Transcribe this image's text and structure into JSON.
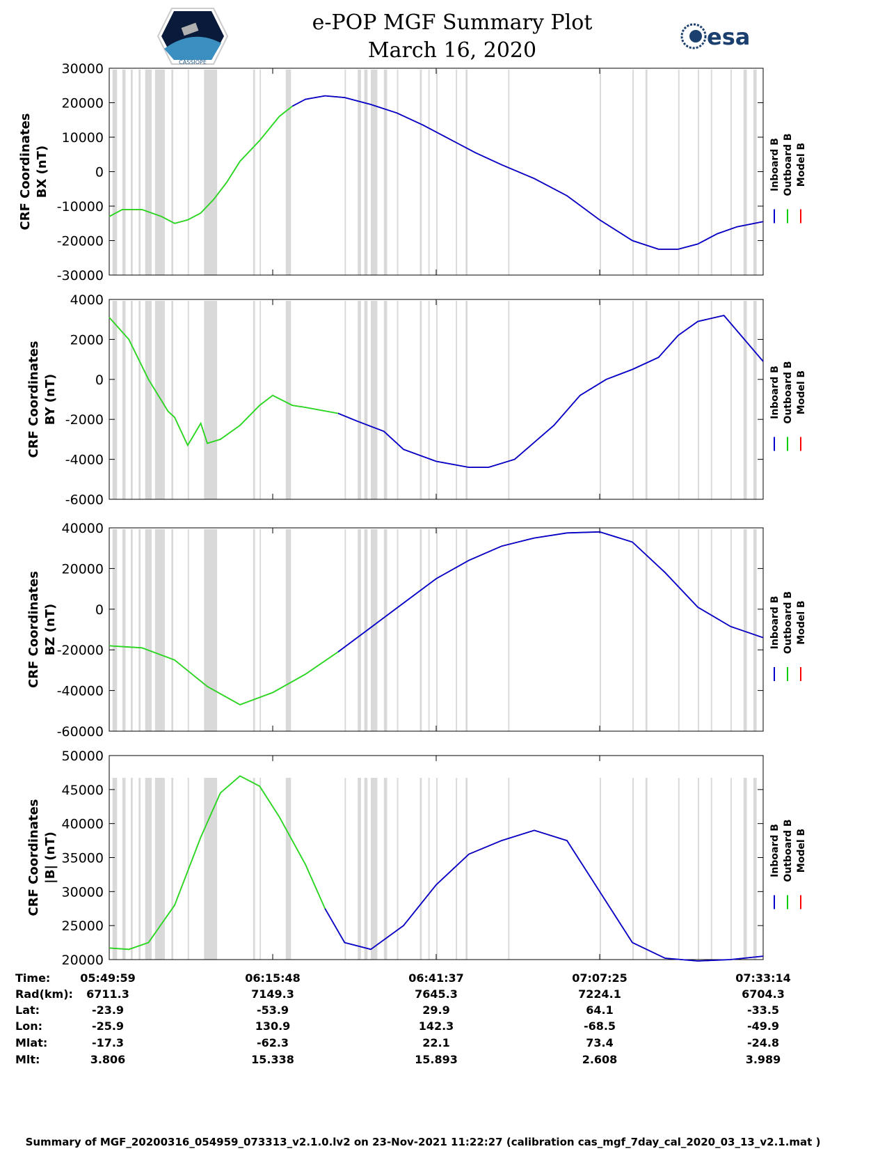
{
  "header": {
    "title": "e-POP MGF Summary Plot",
    "date": "March 16, 2020",
    "left_logo": "CASSIOPE",
    "right_logo": "esa"
  },
  "legend": {
    "items": [
      {
        "label": "Inboard B",
        "color": "#0000cc"
      },
      {
        "label": "Outboard B",
        "color": "#00cc00"
      },
      {
        "label": "Model B",
        "color": "#ff0000"
      }
    ]
  },
  "colors": {
    "inboard": "#0000cc",
    "outboard": "#22dd22",
    "model": "#ff0000",
    "gap": "#d9d9d9"
  },
  "chart_data": [
    {
      "type": "line",
      "ylabel_line1": "CRF Coordinates",
      "ylabel_line2": "BX (nT)",
      "ylim": [
        -30000,
        30000
      ],
      "yticks": [
        30000,
        20000,
        10000,
        0,
        -10000,
        -20000,
        -30000
      ],
      "ytick_labels": [
        "30000",
        "20000",
        "10000",
        "0",
        "-10000",
        "-20000",
        "-30000"
      ],
      "switch_frac": 0.28,
      "x": [
        0,
        0.02,
        0.05,
        0.08,
        0.1,
        0.12,
        0.14,
        0.16,
        0.18,
        0.2,
        0.23,
        0.26,
        0.28,
        0.3,
        0.33,
        0.36,
        0.4,
        0.44,
        0.48,
        0.52,
        0.56,
        0.6,
        0.65,
        0.7,
        0.75,
        0.8,
        0.84,
        0.87,
        0.9,
        0.93,
        0.96,
        1.0
      ],
      "values": [
        -13000,
        -11000,
        -11000,
        -13000,
        -15000,
        -14000,
        -12000,
        -8000,
        -3000,
        3000,
        9000,
        16000,
        19000,
        21000,
        22000,
        21500,
        19500,
        17000,
        13500,
        9500,
        5500,
        2000,
        -2000,
        -7000,
        -14000,
        -20000,
        -22500,
        -22500,
        -21000,
        -18000,
        -16000,
        -14500
      ]
    },
    {
      "type": "line",
      "ylabel_line1": "CRF Coordinates",
      "ylabel_line2": "BY (nT)",
      "ylim": [
        -6000,
        4000
      ],
      "yticks": [
        4000,
        2000,
        0,
        -2000,
        -4000,
        -6000
      ],
      "ytick_labels": [
        "4000",
        "2000",
        "0",
        "-2000",
        "-4000",
        "-6000"
      ],
      "switch_frac": 0.35,
      "x": [
        0,
        0.03,
        0.06,
        0.09,
        0.1,
        0.12,
        0.14,
        0.15,
        0.16,
        0.17,
        0.2,
        0.23,
        0.25,
        0.28,
        0.3,
        0.35,
        0.38,
        0.42,
        0.45,
        0.5,
        0.55,
        0.58,
        0.62,
        0.68,
        0.72,
        0.76,
        0.8,
        0.84,
        0.87,
        0.9,
        0.94,
        1.0
      ],
      "values": [
        3100,
        2000,
        0,
        -1600,
        -1900,
        -3300,
        -2200,
        -3200,
        -3100,
        -3000,
        -2300,
        -1300,
        -800,
        -1300,
        -1400,
        -1700,
        -2100,
        -2600,
        -3500,
        -4100,
        -4400,
        -4400,
        -4000,
        -2300,
        -800,
        0,
        500,
        1100,
        2200,
        2900,
        3200,
        900
      ]
    },
    {
      "type": "line",
      "ylabel_line1": "CRF Coordinates",
      "ylabel_line2": "BZ (nT)",
      "ylim": [
        -60000,
        40000
      ],
      "yticks": [
        40000,
        20000,
        0,
        -20000,
        -40000,
        -60000
      ],
      "ytick_labels": [
        "40000",
        "20000",
        "0",
        "-20000",
        "-40000",
        "-60000"
      ],
      "switch_frac": 0.35,
      "x": [
        0,
        0.05,
        0.1,
        0.15,
        0.2,
        0.25,
        0.3,
        0.35,
        0.4,
        0.45,
        0.5,
        0.55,
        0.6,
        0.65,
        0.7,
        0.75,
        0.8,
        0.85,
        0.9,
        0.95,
        1.0
      ],
      "values": [
        -18000,
        -19000,
        -25000,
        -38000,
        -47000,
        -41000,
        -32000,
        -21000,
        -9000,
        3000,
        15000,
        24000,
        31000,
        35000,
        37500,
        38000,
        33000,
        18000,
        1000,
        -8500,
        -14000
      ]
    },
    {
      "type": "line",
      "ylabel_line1": "CRF Coordinates",
      "ylabel_line2": "|B| (nT)",
      "ylim": [
        20000,
        50000
      ],
      "yticks": [
        50000,
        45000,
        40000,
        35000,
        30000,
        25000,
        20000
      ],
      "ytick_labels": [
        "50000",
        "45000",
        "40000",
        "35000",
        "30000",
        "25000",
        "20000"
      ],
      "switch_frac": 0.35,
      "x": [
        0,
        0.03,
        0.06,
        0.1,
        0.14,
        0.17,
        0.2,
        0.23,
        0.26,
        0.3,
        0.33,
        0.36,
        0.4,
        0.45,
        0.5,
        0.55,
        0.6,
        0.65,
        0.7,
        0.75,
        0.8,
        0.85,
        0.9,
        0.95,
        1.0
      ],
      "values": [
        21700,
        21500,
        22500,
        28000,
        38000,
        44500,
        47000,
        45500,
        41000,
        34000,
        27500,
        22500,
        21500,
        25000,
        31000,
        35500,
        37500,
        39000,
        37500,
        30000,
        22500,
        20200,
        19800,
        20000,
        20500
      ]
    }
  ],
  "gaps": [
    [
      0.005,
      0.012
    ],
    [
      0.02,
      0.025
    ],
    [
      0.033,
      0.036
    ],
    [
      0.045,
      0.048
    ],
    [
      0.055,
      0.065
    ],
    [
      0.07,
      0.085
    ],
    [
      0.095,
      0.098
    ],
    [
      0.12,
      0.122
    ],
    [
      0.145,
      0.165
    ],
    [
      0.22,
      0.223
    ],
    [
      0.23,
      0.232
    ],
    [
      0.27,
      0.278
    ],
    [
      0.36,
      0.362
    ],
    [
      0.38,
      0.385
    ],
    [
      0.39,
      0.395
    ],
    [
      0.4,
      0.41
    ],
    [
      0.42,
      0.425
    ],
    [
      0.44,
      0.442
    ],
    [
      0.475,
      0.478
    ],
    [
      0.488,
      0.49
    ],
    [
      0.5,
      0.502
    ],
    [
      0.53,
      0.532
    ],
    [
      0.545,
      0.548
    ],
    [
      0.61,
      0.612
    ],
    [
      0.75,
      0.752
    ],
    [
      0.8,
      0.802
    ],
    [
      0.82,
      0.823
    ],
    [
      0.87,
      0.872
    ],
    [
      0.9,
      0.902
    ],
    [
      0.92,
      0.922
    ],
    [
      0.95,
      0.952
    ],
    [
      0.97,
      0.975
    ],
    [
      0.985,
      0.99
    ]
  ],
  "data_table": {
    "row_labels": [
      "Time:",
      "Rad(km):",
      "Lat:",
      "Lon:",
      "Mlat:",
      "Mlt:"
    ],
    "columns": [
      [
        "05:49:59",
        "6711.3",
        "-23.9",
        "-25.9",
        "-17.3",
        "3.806"
      ],
      [
        "06:15:48",
        "7149.3",
        "-53.9",
        "130.9",
        "-62.3",
        "15.338"
      ],
      [
        "06:41:37",
        "7645.3",
        "29.9",
        "142.3",
        "22.1",
        "15.893"
      ],
      [
        "07:07:25",
        "7224.1",
        "64.1",
        "-68.5",
        "73.4",
        "2.608"
      ],
      [
        "07:33:14",
        "6704.3",
        "-33.5",
        "-49.9",
        "-24.8",
        "3.989"
      ]
    ]
  },
  "footer": "Summary of MGF_20200316_054959_073313_v2.1.0.lv2 on 23-Nov-2021 11:22:27 (calibration cas_mgf_7day_cal_2020_03_13_v2.1.mat )"
}
